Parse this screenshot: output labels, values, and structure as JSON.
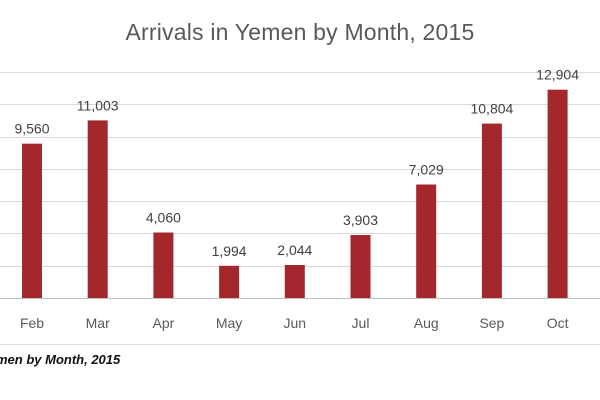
{
  "chart_data": {
    "type": "bar",
    "title": "Arrivals in Yemen by Month, 2015",
    "categories": [
      "Feb",
      "Mar",
      "Apr",
      "May",
      "Jun",
      "Jul",
      "Aug",
      "Sep",
      "Oct"
    ],
    "values": [
      9560,
      11003,
      4060,
      1994,
      2044,
      3903,
      7029,
      10804,
      12904
    ],
    "value_labels": [
      "9,560",
      "11,003",
      "4,060",
      "1,994",
      "2,044",
      "3,903",
      "7,029",
      "10,804",
      "12,904"
    ],
    "ylim": [
      0,
      14000
    ],
    "ytick_step": 2000,
    "grid": true,
    "legend": "none",
    "bar_color": "#a4282b",
    "xlabel": "",
    "ylabel": ""
  },
  "caption": "men by Month, 2015"
}
